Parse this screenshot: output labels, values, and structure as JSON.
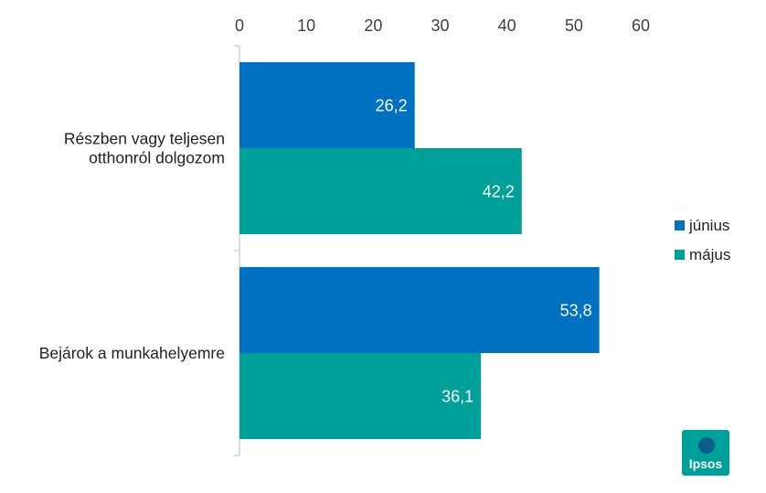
{
  "chart_data": {
    "type": "bar",
    "orientation": "horizontal",
    "categories": [
      "Részben vagy teljesen otthonról dolgozom",
      "Bejárok a munkahelyemre"
    ],
    "category_lines": [
      [
        "Részben vagy teljesen",
        "otthonról dolgozom"
      ],
      [
        "Bejárok a munkahelyemre"
      ]
    ],
    "series": [
      {
        "name": "június",
        "values": [
          26.2,
          53.8
        ],
        "labels": [
          "26,2",
          "53,8"
        ],
        "color": "#0070C0"
      },
      {
        "name": "május",
        "values": [
          42.2,
          36.1
        ],
        "labels": [
          "42,2",
          "36,1"
        ],
        "color": "#00A09A"
      }
    ],
    "xlim": [
      0,
      60
    ],
    "xticks": [
      0,
      10,
      20,
      30,
      40,
      50,
      60
    ],
    "xtick_labels": [
      "0",
      "10",
      "20",
      "30",
      "40",
      "50",
      "60"
    ],
    "x_axis_position": "top",
    "grid": false,
    "legend_position": "right"
  },
  "logo": {
    "text": "Ipsos",
    "color": "#00A09A"
  }
}
